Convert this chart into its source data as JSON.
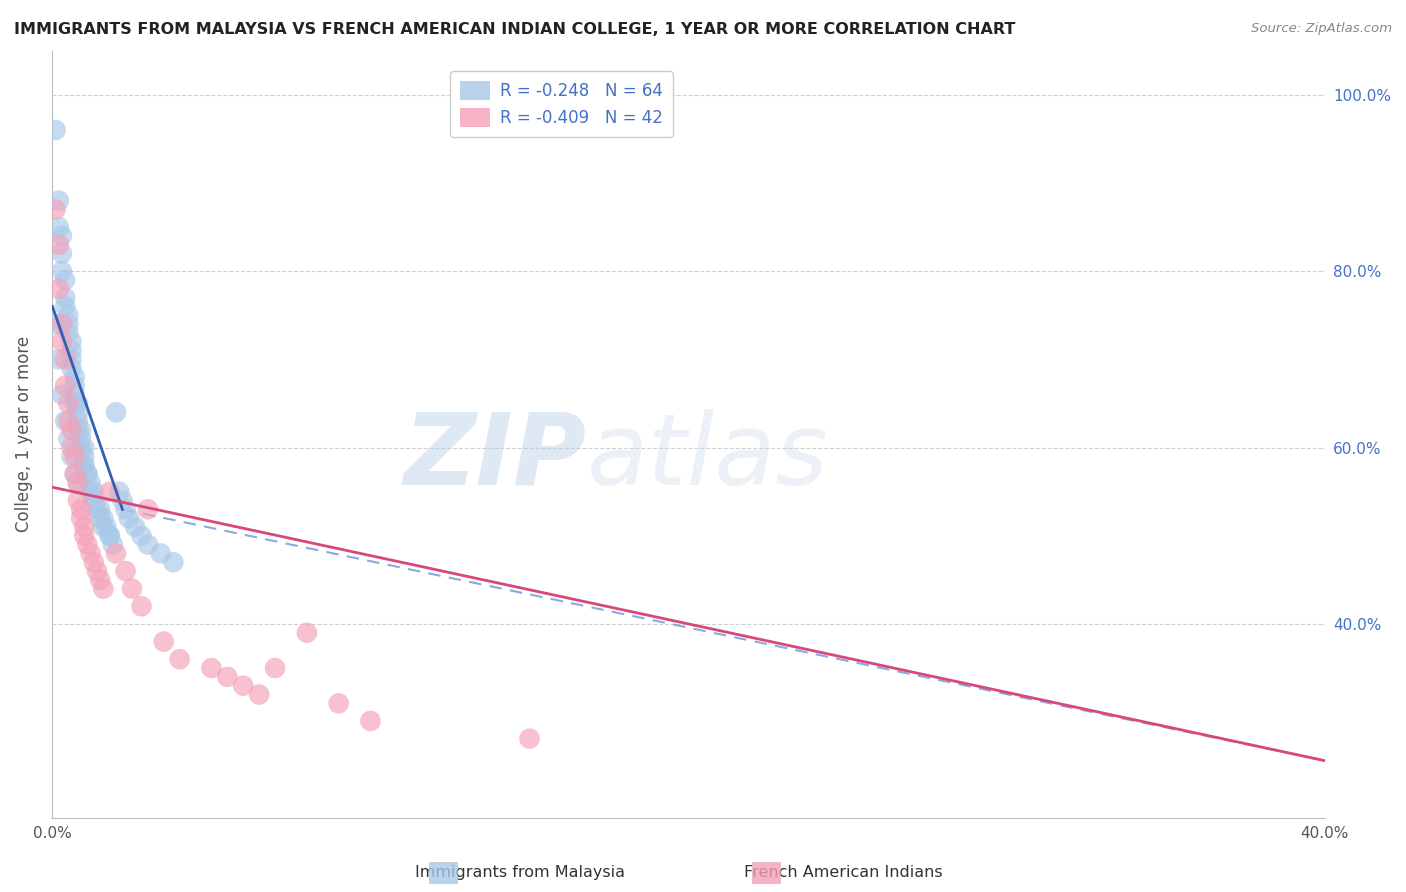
{
  "title": "IMMIGRANTS FROM MALAYSIA VS FRENCH AMERICAN INDIAN COLLEGE, 1 YEAR OR MORE CORRELATION CHART",
  "source": "Source: ZipAtlas.com",
  "ylabel": "College, 1 year or more",
  "xlim": [
    0.0,
    0.4
  ],
  "ylim": [
    0.18,
    1.05
  ],
  "y_ticks": [
    0.4,
    0.6,
    0.8,
    1.0
  ],
  "y_tick_labels": [
    "40.0%",
    "60.0%",
    "80.0%",
    "100.0%"
  ],
  "x_ticks": [
    0.0,
    0.1,
    0.2,
    0.3,
    0.4
  ],
  "x_tick_labels": [
    "0.0%",
    "",
    "",
    "",
    "40.0%"
  ],
  "legend_R1": "R = -0.248",
  "legend_N1": "N = 64",
  "legend_R2": "R = -0.409",
  "legend_N2": "N = 42",
  "legend_label1": "Immigrants from Malaysia",
  "legend_label2": "French American Indians",
  "blue_color": "#a8c8e8",
  "pink_color": "#f4a0b8",
  "blue_line_color": "#3060b0",
  "pink_line_color": "#d84878",
  "dashed_line_color": "#88aadd",
  "blue_scatter_x": [
    0.001,
    0.002,
    0.002,
    0.003,
    0.003,
    0.003,
    0.004,
    0.004,
    0.004,
    0.005,
    0.005,
    0.005,
    0.006,
    0.006,
    0.006,
    0.006,
    0.007,
    0.007,
    0.007,
    0.007,
    0.008,
    0.008,
    0.008,
    0.008,
    0.009,
    0.009,
    0.009,
    0.01,
    0.01,
    0.01,
    0.01,
    0.011,
    0.011,
    0.012,
    0.012,
    0.013,
    0.013,
    0.014,
    0.015,
    0.015,
    0.016,
    0.016,
    0.017,
    0.018,
    0.018,
    0.019,
    0.02,
    0.021,
    0.022,
    0.023,
    0.024,
    0.026,
    0.028,
    0.03,
    0.034,
    0.038,
    0.001,
    0.002,
    0.003,
    0.004,
    0.005,
    0.006,
    0.007,
    0.008
  ],
  "blue_scatter_y": [
    0.96,
    0.88,
    0.85,
    0.84,
    0.82,
    0.8,
    0.79,
    0.77,
    0.76,
    0.75,
    0.74,
    0.73,
    0.72,
    0.71,
    0.7,
    0.69,
    0.68,
    0.67,
    0.66,
    0.65,
    0.65,
    0.64,
    0.63,
    0.62,
    0.62,
    0.61,
    0.6,
    0.6,
    0.59,
    0.58,
    0.58,
    0.57,
    0.57,
    0.56,
    0.55,
    0.55,
    0.54,
    0.53,
    0.53,
    0.52,
    0.52,
    0.51,
    0.51,
    0.5,
    0.5,
    0.49,
    0.64,
    0.55,
    0.54,
    0.53,
    0.52,
    0.51,
    0.5,
    0.49,
    0.48,
    0.47,
    0.74,
    0.7,
    0.66,
    0.63,
    0.61,
    0.59,
    0.57,
    0.56
  ],
  "pink_scatter_x": [
    0.001,
    0.002,
    0.002,
    0.003,
    0.003,
    0.004,
    0.004,
    0.005,
    0.005,
    0.006,
    0.006,
    0.007,
    0.007,
    0.008,
    0.008,
    0.009,
    0.009,
    0.01,
    0.01,
    0.011,
    0.012,
    0.013,
    0.014,
    0.015,
    0.016,
    0.018,
    0.02,
    0.023,
    0.025,
    0.028,
    0.03,
    0.035,
    0.04,
    0.05,
    0.055,
    0.06,
    0.065,
    0.07,
    0.08,
    0.09,
    0.1,
    0.15
  ],
  "pink_scatter_y": [
    0.87,
    0.83,
    0.78,
    0.74,
    0.72,
    0.7,
    0.67,
    0.65,
    0.63,
    0.62,
    0.6,
    0.59,
    0.57,
    0.56,
    0.54,
    0.53,
    0.52,
    0.51,
    0.5,
    0.49,
    0.48,
    0.47,
    0.46,
    0.45,
    0.44,
    0.55,
    0.48,
    0.46,
    0.44,
    0.42,
    0.53,
    0.38,
    0.36,
    0.35,
    0.34,
    0.33,
    0.32,
    0.35,
    0.39,
    0.31,
    0.29,
    0.27
  ],
  "blue_line_x": [
    0.0,
    0.022
  ],
  "blue_line_y": [
    0.76,
    0.53
  ],
  "pink_line_x": [
    0.0,
    0.4
  ],
  "pink_line_y": [
    0.555,
    0.245
  ],
  "dashed_line_x": [
    0.022,
    0.4
  ],
  "dashed_line_y": [
    0.53,
    0.245
  ],
  "watermark_zip": "ZIP",
  "watermark_atlas": "atlas",
  "background_color": "#ffffff",
  "grid_color": "#d0d0d0"
}
